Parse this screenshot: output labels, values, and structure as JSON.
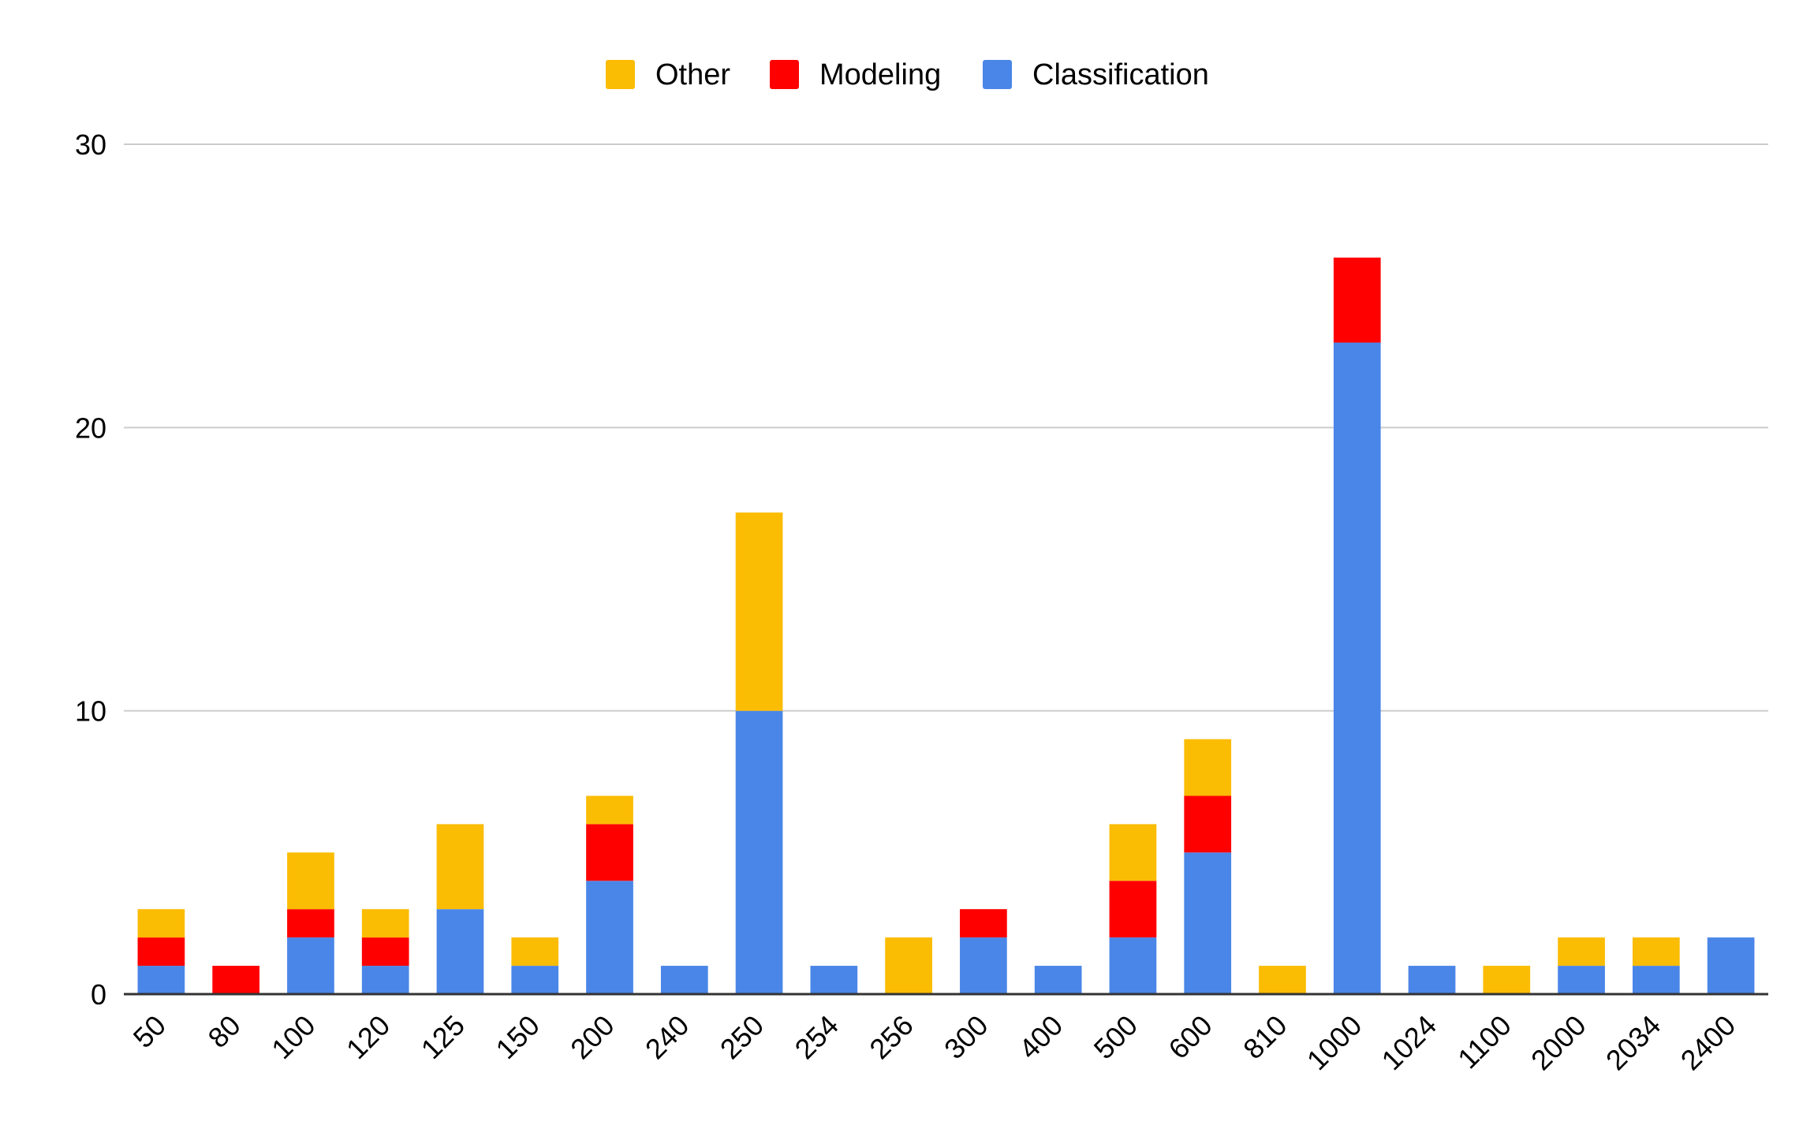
{
  "chart_data": {
    "type": "bar",
    "stacked": true,
    "title": "",
    "xlabel": "",
    "ylabel": "",
    "ylim": [
      0,
      30
    ],
    "yticks": [
      0,
      10,
      20,
      30
    ],
    "grid": true,
    "legend_position": "top",
    "categories": [
      "50",
      "80",
      "100",
      "120",
      "125",
      "150",
      "200",
      "240",
      "250",
      "254",
      "256",
      "300",
      "400",
      "500",
      "600",
      "810",
      "1000",
      "1024",
      "1100",
      "2000",
      "2034",
      "2400"
    ],
    "series": [
      {
        "name": "Classification",
        "color": "#4a86e8",
        "values": [
          1,
          0,
          2,
          1,
          3,
          1,
          4,
          1,
          10,
          1,
          0,
          2,
          1,
          2,
          5,
          0,
          23,
          1,
          0,
          1,
          1,
          2
        ]
      },
      {
        "name": "Modeling",
        "color": "#ff0000",
        "values": [
          1,
          1,
          1,
          1,
          0,
          0,
          2,
          0,
          0,
          0,
          0,
          1,
          0,
          2,
          2,
          0,
          3,
          0,
          0,
          0,
          0,
          0
        ]
      },
      {
        "name": "Other",
        "color": "#fbbc04",
        "values": [
          1,
          0,
          2,
          1,
          3,
          1,
          1,
          0,
          7,
          0,
          2,
          0,
          0,
          2,
          2,
          1,
          0,
          0,
          1,
          1,
          1,
          0
        ]
      }
    ],
    "legend_order": [
      "Other",
      "Modeling",
      "Classification"
    ]
  }
}
